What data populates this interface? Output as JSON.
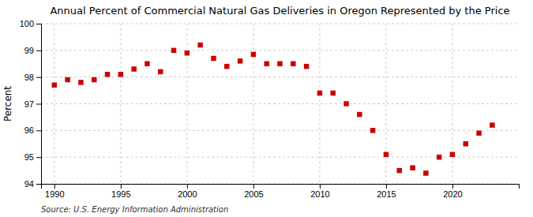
{
  "chart_data": {
    "type": "scatter",
    "title": "Annual Percent of Commercial Natural Gas Deliveries in Oregon Represented by the Price",
    "ylabel": "Percent",
    "source": "Source: U.S. Energy Information Administration",
    "x": [
      1990,
      1991,
      1992,
      1993,
      1994,
      1995,
      1996,
      1997,
      1998,
      1999,
      2000,
      2001,
      2002,
      2003,
      2004,
      2005,
      2006,
      2007,
      2008,
      2009,
      2010,
      2011,
      2012,
      2013,
      2014,
      2015,
      2016,
      2017,
      2018,
      2019,
      2020,
      2021,
      2022,
      2023
    ],
    "values": [
      97.7,
      97.9,
      97.8,
      97.9,
      98.1,
      98.1,
      98.3,
      98.5,
      98.2,
      99.0,
      98.9,
      99.2,
      98.7,
      98.4,
      98.6,
      98.85,
      98.5,
      98.5,
      98.5,
      98.4,
      97.4,
      97.4,
      97.0,
      96.6,
      96.0,
      95.1,
      94.5,
      94.6,
      94.4,
      95.0,
      95.1,
      95.5,
      95.9,
      96.2
    ],
    "color": "#cc0000",
    "marker": "square",
    "xlim": [
      1989,
      2025
    ],
    "xticks": [
      1990,
      1995,
      2000,
      2005,
      2010,
      2015,
      2020
    ],
    "ylim": [
      94,
      100
    ],
    "yticks": [
      94,
      95,
      96,
      97,
      98,
      99,
      100
    ],
    "grid": true
  }
}
